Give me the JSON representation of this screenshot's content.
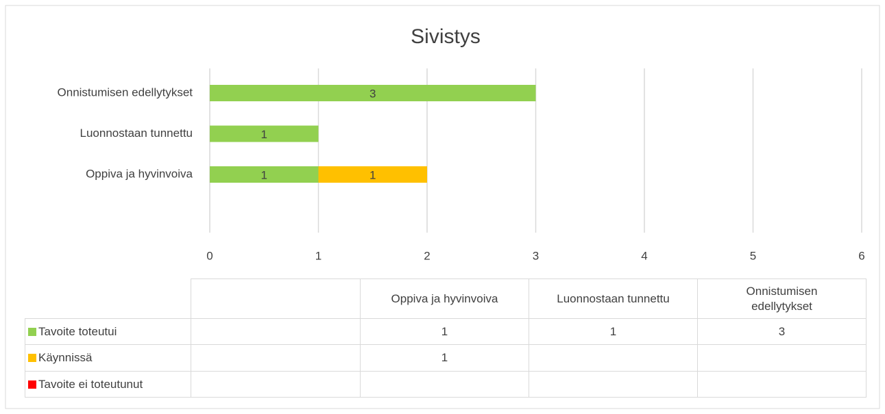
{
  "chart_data": {
    "type": "stacked-bar-horizontal",
    "title": "Sivistys",
    "categories": [
      "Oppiva ja hyvinvoiva",
      "Luonnostaan tunnettu",
      "Onnistumisen edellytykset"
    ],
    "series": [
      {
        "name": "Tavoite toteutui",
        "color": "#92d050",
        "values": [
          1,
          1,
          3
        ]
      },
      {
        "name": "Käynnissä",
        "color": "#ffc000",
        "values": [
          1,
          null,
          null
        ]
      },
      {
        "name": "Tavoite ei toteutunut",
        "color": "#ff0000",
        "values": [
          null,
          null,
          null
        ]
      }
    ],
    "xlim": [
      0,
      6
    ],
    "xticks": [
      0,
      1,
      2,
      3,
      4,
      5,
      6
    ],
    "grid": true,
    "data_table": true
  }
}
